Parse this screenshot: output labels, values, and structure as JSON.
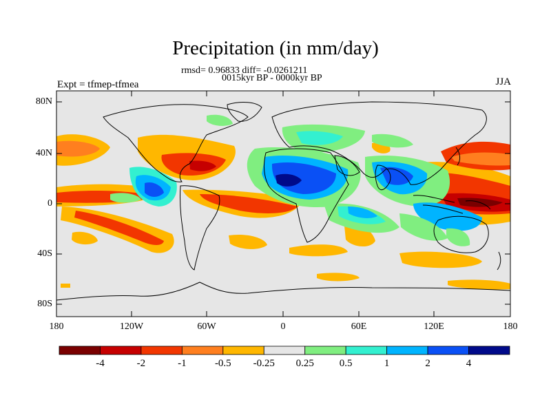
{
  "title": "Precipitation (in mm/day)",
  "stats_line": "rmsd= 0.96833 diff= -0.0261211",
  "period_line": "0015kyr BP - 0000kyr BP",
  "left_label": "Expt = tfmep-tfmea",
  "season_label": "JJA",
  "lat_ticks": [
    "80N",
    "40N",
    "0",
    "40S",
    "80S"
  ],
  "lon_ticks": [
    "180",
    "120W",
    "60W",
    "0",
    "60E",
    "120E",
    "180"
  ],
  "colorbar": {
    "colors": [
      "#7a0000",
      "#c60000",
      "#f23600",
      "#ff7f1f",
      "#ffb700",
      "#e6e6e6",
      "#80ee80",
      "#33f0d0",
      "#00b4ff",
      "#0a50f5",
      "#000a8a"
    ],
    "labels": [
      "-4",
      "-2",
      "-1",
      "-0.5",
      "-0.25",
      "0.25",
      "0.5",
      "1",
      "2",
      "4"
    ]
  }
}
